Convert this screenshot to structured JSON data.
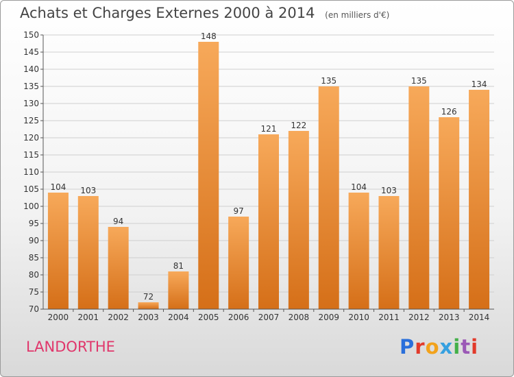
{
  "header": {
    "title": "Achats et Charges Externes 2000 à 2014",
    "unit": "(en milliers d'€)"
  },
  "footer": {
    "commune": "LANDORTHE",
    "logo_text": "Proxiti",
    "logo_colors": [
      "#2a6fdb",
      "#e23a2a",
      "#f2a21b",
      "#36a0e0",
      "#43b049",
      "#9b59b6",
      "#e23a2a"
    ]
  },
  "colors": {
    "bar_top": "#f7a95a",
    "bar_bottom": "#d56f18",
    "grid": "#cfcfcf",
    "axis": "#555555"
  },
  "chart_data": {
    "type": "bar",
    "title": "Achats et Charges Externes 2000 à 2014",
    "subtitle": "(en milliers d'€)",
    "xlabel": "",
    "ylabel": "",
    "categories": [
      "2000",
      "2001",
      "2002",
      "2003",
      "2004",
      "2005",
      "2006",
      "2007",
      "2008",
      "2009",
      "2010",
      "2011",
      "2012",
      "2013",
      "2014"
    ],
    "values": [
      104,
      103,
      94,
      72,
      81,
      148,
      97,
      121,
      122,
      135,
      104,
      103,
      135,
      126,
      134
    ],
    "ylim": [
      70,
      150
    ],
    "yticks": [
      70,
      75,
      80,
      85,
      90,
      95,
      100,
      105,
      110,
      115,
      120,
      125,
      130,
      135,
      140,
      145,
      150
    ],
    "grid": true,
    "legend": "none"
  }
}
